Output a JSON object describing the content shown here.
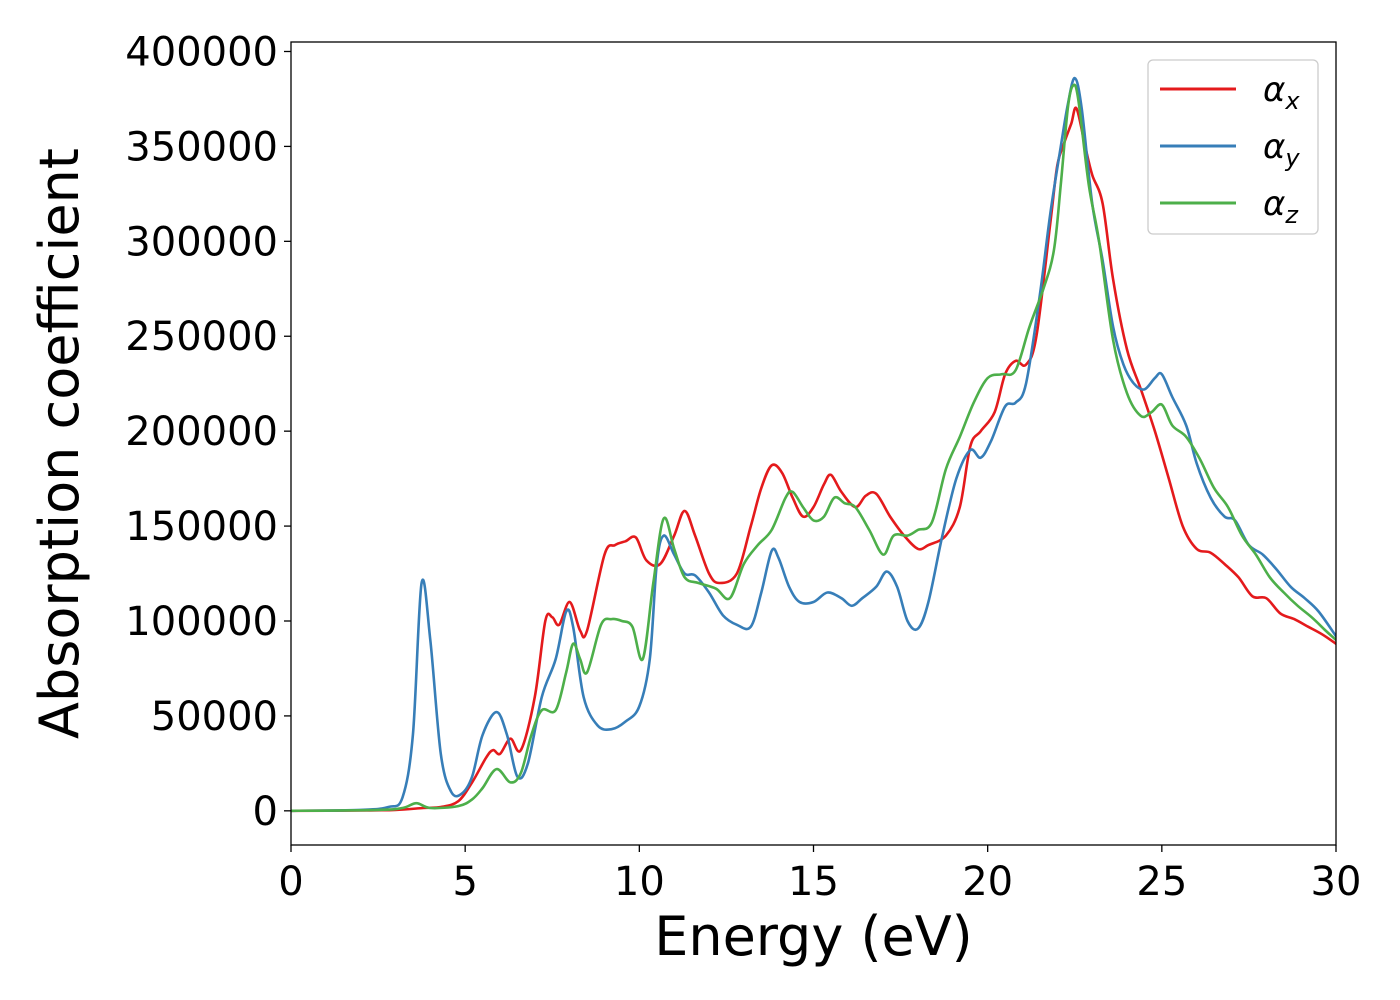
{
  "chart_data": {
    "type": "line",
    "title": "",
    "xlabel": "Energy (eV)",
    "ylabel": "Absorption coefficient",
    "xlim": [
      0,
      30
    ],
    "ylim": [
      -18000,
      405000
    ],
    "xticks": [
      0,
      5,
      10,
      15,
      20,
      25,
      30
    ],
    "xtick_labels": [
      "0",
      "5",
      "10",
      "15",
      "20",
      "25",
      "30"
    ],
    "yticks": [
      0,
      50000,
      100000,
      150000,
      200000,
      250000,
      300000,
      350000,
      400000
    ],
    "ytick_labels": [
      "0",
      "50000",
      "100000",
      "150000",
      "200000",
      "250000",
      "300000",
      "350000",
      "400000"
    ],
    "grid": false,
    "legend_position": "top-right",
    "series": [
      {
        "name": "α_x",
        "label_base": "α",
        "label_sub": "x",
        "color": "#e41a1c",
        "points": [
          [
            0,
            0
          ],
          [
            2,
            200
          ],
          [
            3,
            500
          ],
          [
            3.8,
            1500
          ],
          [
            4.3,
            2000
          ],
          [
            4.8,
            5000
          ],
          [
            5.2,
            15000
          ],
          [
            5.6,
            28000
          ],
          [
            5.8,
            32000
          ],
          [
            6.0,
            30000
          ],
          [
            6.3,
            38000
          ],
          [
            6.6,
            32000
          ],
          [
            7.0,
            60000
          ],
          [
            7.3,
            100000
          ],
          [
            7.5,
            102000
          ],
          [
            7.7,
            98000
          ],
          [
            8.0,
            110000
          ],
          [
            8.3,
            95000
          ],
          [
            8.5,
            95000
          ],
          [
            9.0,
            135000
          ],
          [
            9.3,
            140000
          ],
          [
            9.6,
            142000
          ],
          [
            9.9,
            144000
          ],
          [
            10.2,
            132000
          ],
          [
            10.6,
            130000
          ],
          [
            11.0,
            145000
          ],
          [
            11.3,
            158000
          ],
          [
            11.6,
            145000
          ],
          [
            12.0,
            125000
          ],
          [
            12.3,
            120000
          ],
          [
            12.8,
            125000
          ],
          [
            13.2,
            150000
          ],
          [
            13.5,
            170000
          ],
          [
            13.8,
            182000
          ],
          [
            14.1,
            178000
          ],
          [
            14.4,
            165000
          ],
          [
            14.7,
            155000
          ],
          [
            15.0,
            160000
          ],
          [
            15.3,
            172000
          ],
          [
            15.5,
            177000
          ],
          [
            15.8,
            168000
          ],
          [
            16.2,
            160000
          ],
          [
            16.5,
            166000
          ],
          [
            16.8,
            167000
          ],
          [
            17.2,
            155000
          ],
          [
            17.6,
            145000
          ],
          [
            18.0,
            138000
          ],
          [
            18.3,
            140000
          ],
          [
            18.8,
            145000
          ],
          [
            19.2,
            160000
          ],
          [
            19.5,
            192000
          ],
          [
            19.8,
            200000
          ],
          [
            20.2,
            210000
          ],
          [
            20.5,
            230000
          ],
          [
            20.8,
            237000
          ],
          [
            21.1,
            235000
          ],
          [
            21.4,
            250000
          ],
          [
            21.8,
            310000
          ],
          [
            22.0,
            340000
          ],
          [
            22.2,
            352000
          ],
          [
            22.4,
            362000
          ],
          [
            22.55,
            370000
          ],
          [
            22.8,
            350000
          ],
          [
            23.0,
            335000
          ],
          [
            23.3,
            320000
          ],
          [
            23.6,
            280000
          ],
          [
            24.0,
            243000
          ],
          [
            24.4,
            222000
          ],
          [
            24.8,
            200000
          ],
          [
            25.2,
            175000
          ],
          [
            25.6,
            150000
          ],
          [
            26.0,
            138000
          ],
          [
            26.4,
            136000
          ],
          [
            26.8,
            130000
          ],
          [
            27.2,
            123000
          ],
          [
            27.6,
            113000
          ],
          [
            28.0,
            112000
          ],
          [
            28.4,
            104000
          ],
          [
            28.8,
            101000
          ],
          [
            29.2,
            97000
          ],
          [
            29.6,
            93000
          ],
          [
            30.0,
            88000
          ]
        ]
      },
      {
        "name": "α_y",
        "label_base": "α",
        "label_sub": "y",
        "color": "#377eb8",
        "points": [
          [
            0,
            0
          ],
          [
            2,
            500
          ],
          [
            2.8,
            2000
          ],
          [
            3.2,
            7000
          ],
          [
            3.5,
            40000
          ],
          [
            3.75,
            120000
          ],
          [
            4.0,
            90000
          ],
          [
            4.3,
            30000
          ],
          [
            4.6,
            10000
          ],
          [
            4.9,
            9000
          ],
          [
            5.2,
            18000
          ],
          [
            5.5,
            40000
          ],
          [
            5.9,
            52000
          ],
          [
            6.2,
            40000
          ],
          [
            6.5,
            18000
          ],
          [
            6.8,
            25000
          ],
          [
            7.2,
            60000
          ],
          [
            7.6,
            80000
          ],
          [
            7.9,
            105000
          ],
          [
            8.1,
            97000
          ],
          [
            8.4,
            60000
          ],
          [
            8.8,
            45000
          ],
          [
            9.2,
            43000
          ],
          [
            9.6,
            47000
          ],
          [
            10.0,
            55000
          ],
          [
            10.3,
            80000
          ],
          [
            10.5,
            130000
          ],
          [
            10.7,
            145000
          ],
          [
            11.0,
            135000
          ],
          [
            11.3,
            125000
          ],
          [
            11.6,
            124000
          ],
          [
            12.0,
            115000
          ],
          [
            12.4,
            103000
          ],
          [
            12.8,
            98000
          ],
          [
            13.2,
            97000
          ],
          [
            13.5,
            115000
          ],
          [
            13.8,
            137000
          ],
          [
            14.0,
            133000
          ],
          [
            14.3,
            118000
          ],
          [
            14.6,
            110000
          ],
          [
            15.0,
            110000
          ],
          [
            15.4,
            115000
          ],
          [
            15.8,
            112000
          ],
          [
            16.1,
            108000
          ],
          [
            16.4,
            112000
          ],
          [
            16.8,
            118000
          ],
          [
            17.1,
            126000
          ],
          [
            17.4,
            118000
          ],
          [
            17.7,
            100000
          ],
          [
            18.0,
            96000
          ],
          [
            18.3,
            110000
          ],
          [
            18.7,
            145000
          ],
          [
            19.1,
            175000
          ],
          [
            19.5,
            190000
          ],
          [
            19.8,
            186000
          ],
          [
            20.1,
            195000
          ],
          [
            20.5,
            213000
          ],
          [
            20.8,
            215000
          ],
          [
            21.1,
            225000
          ],
          [
            21.5,
            272000
          ],
          [
            21.8,
            315000
          ],
          [
            22.1,
            350000
          ],
          [
            22.3,
            372000
          ],
          [
            22.5,
            386000
          ],
          [
            22.7,
            370000
          ],
          [
            23.0,
            320000
          ],
          [
            23.3,
            290000
          ],
          [
            23.6,
            255000
          ],
          [
            23.9,
            235000
          ],
          [
            24.2,
            225000
          ],
          [
            24.5,
            222000
          ],
          [
            24.8,
            228000
          ],
          [
            25.0,
            230000
          ],
          [
            25.3,
            218000
          ],
          [
            25.7,
            203000
          ],
          [
            26.0,
            183000
          ],
          [
            26.4,
            165000
          ],
          [
            26.8,
            155000
          ],
          [
            27.1,
            153000
          ],
          [
            27.5,
            140000
          ],
          [
            27.9,
            135000
          ],
          [
            28.3,
            127000
          ],
          [
            28.7,
            118000
          ],
          [
            29.1,
            112000
          ],
          [
            29.5,
            105000
          ],
          [
            30.0,
            92000
          ]
        ]
      },
      {
        "name": "α_z",
        "label_base": "α",
        "label_sub": "z",
        "color": "#4daf4a",
        "points": [
          [
            0,
            0
          ],
          [
            2.5,
            500
          ],
          [
            3.2,
            1500
          ],
          [
            3.6,
            4000
          ],
          [
            4.0,
            1500
          ],
          [
            4.8,
            2500
          ],
          [
            5.2,
            6000
          ],
          [
            5.5,
            12000
          ],
          [
            5.9,
            22000
          ],
          [
            6.3,
            15000
          ],
          [
            6.6,
            20000
          ],
          [
            6.9,
            40000
          ],
          [
            7.2,
            53000
          ],
          [
            7.6,
            53000
          ],
          [
            7.9,
            73000
          ],
          [
            8.1,
            88000
          ],
          [
            8.3,
            80000
          ],
          [
            8.5,
            73000
          ],
          [
            8.9,
            98000
          ],
          [
            9.2,
            101000
          ],
          [
            9.5,
            100000
          ],
          [
            9.8,
            97000
          ],
          [
            10.1,
            80000
          ],
          [
            10.4,
            120000
          ],
          [
            10.7,
            154000
          ],
          [
            11.0,
            138000
          ],
          [
            11.3,
            123000
          ],
          [
            11.7,
            120000
          ],
          [
            12.2,
            117000
          ],
          [
            12.6,
            112000
          ],
          [
            13.0,
            130000
          ],
          [
            13.4,
            140000
          ],
          [
            13.8,
            148000
          ],
          [
            14.2,
            165000
          ],
          [
            14.4,
            168000
          ],
          [
            14.7,
            160000
          ],
          [
            15.0,
            153000
          ],
          [
            15.3,
            155000
          ],
          [
            15.6,
            165000
          ],
          [
            15.9,
            162000
          ],
          [
            16.2,
            160000
          ],
          [
            16.6,
            148000
          ],
          [
            17.0,
            135000
          ],
          [
            17.3,
            145000
          ],
          [
            17.7,
            145000
          ],
          [
            18.0,
            148000
          ],
          [
            18.4,
            152000
          ],
          [
            18.8,
            180000
          ],
          [
            19.2,
            197000
          ],
          [
            19.6,
            215000
          ],
          [
            20.0,
            228000
          ],
          [
            20.4,
            230000
          ],
          [
            20.8,
            232000
          ],
          [
            21.2,
            255000
          ],
          [
            21.6,
            275000
          ],
          [
            21.9,
            295000
          ],
          [
            22.1,
            330000
          ],
          [
            22.3,
            370000
          ],
          [
            22.45,
            382000
          ],
          [
            22.6,
            375000
          ],
          [
            22.9,
            330000
          ],
          [
            23.2,
            300000
          ],
          [
            23.6,
            248000
          ],
          [
            24.0,
            220000
          ],
          [
            24.4,
            208000
          ],
          [
            24.7,
            210000
          ],
          [
            25.0,
            214000
          ],
          [
            25.3,
            203000
          ],
          [
            25.7,
            197000
          ],
          [
            26.1,
            185000
          ],
          [
            26.5,
            170000
          ],
          [
            26.9,
            160000
          ],
          [
            27.3,
            145000
          ],
          [
            27.7,
            135000
          ],
          [
            28.1,
            123000
          ],
          [
            28.5,
            115000
          ],
          [
            28.9,
            108000
          ],
          [
            29.3,
            102000
          ],
          [
            29.7,
            95000
          ],
          [
            30.0,
            90000
          ]
        ]
      }
    ]
  }
}
